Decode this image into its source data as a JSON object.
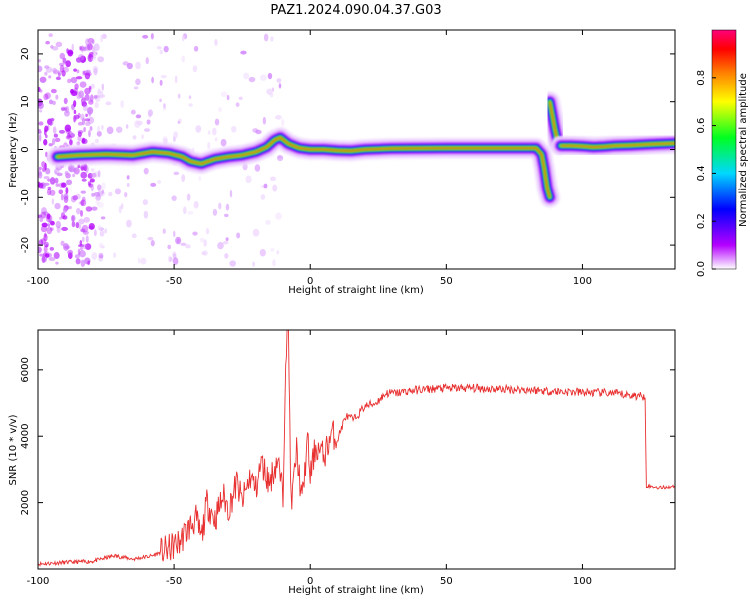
{
  "title": "PAZ1.2024.090.04.37.G03",
  "colors": {
    "snr_line": "#e83030",
    "frame": "#000000",
    "cmap": [
      "#ffffff",
      "#b400ff",
      "#0000ff",
      "#00d8ff",
      "#00ff20",
      "#ffff00",
      "#ff8000",
      "#ff0000",
      "#ff007a"
    ]
  },
  "chart_data": [
    {
      "type": "heatmap",
      "name": "spectrogram",
      "xlabel": "Height of straight line (km)",
      "ylabel": "Frequency (Hz)",
      "xlim": [
        -100,
        134
      ],
      "ylim": [
        -25,
        25
      ],
      "x_ticks": [
        -100,
        -50,
        0,
        50,
        100
      ],
      "y_ticks": [
        -20,
        -10,
        0,
        10,
        20
      ],
      "colorbar": {
        "label": "Normalized spectral amplitude",
        "range": [
          0,
          1
        ],
        "ticks": [
          0.0,
          0.2,
          0.4,
          0.6,
          0.8
        ]
      },
      "ridge": [
        [
          -93,
          -1.5
        ],
        [
          -85,
          -1.2
        ],
        [
          -75,
          -1.0
        ],
        [
          -65,
          -1.2
        ],
        [
          -58,
          -0.5
        ],
        [
          -52,
          -0.8
        ],
        [
          -47,
          -1.5
        ],
        [
          -44,
          -2.5
        ],
        [
          -40,
          -3.0
        ],
        [
          -35,
          -2.0
        ],
        [
          -30,
          -1.5
        ],
        [
          -25,
          -1.2
        ],
        [
          -20,
          -0.5
        ],
        [
          -16,
          0.5
        ],
        [
          -13,
          2.0
        ],
        [
          -11,
          2.5
        ],
        [
          -8,
          1.2
        ],
        [
          -4,
          0.3
        ],
        [
          0,
          0.0
        ],
        [
          5,
          0.0
        ],
        [
          10,
          -0.2
        ],
        [
          15,
          -0.3
        ],
        [
          20,
          0.0
        ],
        [
          30,
          0.2
        ],
        [
          50,
          0.3
        ],
        [
          70,
          0.3
        ],
        [
          83,
          0.3
        ],
        [
          85,
          -1.0
        ],
        [
          86,
          -4.0
        ],
        [
          87,
          -8.0
        ],
        [
          88,
          -10.0
        ]
      ],
      "ridge_spike": [
        [
          88,
          10.0
        ],
        [
          90,
          4.0
        ],
        [
          91,
          1.5
        ],
        [
          92,
          1.0
        ]
      ],
      "ridge_right": [
        [
          92,
          0.8
        ],
        [
          96,
          0.8
        ],
        [
          100,
          0.7
        ],
        [
          104,
          0.5
        ],
        [
          108,
          0.6
        ],
        [
          112,
          0.8
        ],
        [
          118,
          0.9
        ],
        [
          125,
          1.1
        ],
        [
          134,
          1.3
        ]
      ]
    },
    {
      "type": "line",
      "name": "snr",
      "xlabel": "Height of straight line (km)",
      "ylabel": "SNR (10 * v/v)",
      "xlim": [
        -100,
        134
      ],
      "ylim": [
        0,
        7200
      ],
      "x_ticks": [
        -100,
        -50,
        0,
        50,
        100
      ],
      "y_ticks": [
        2000,
        4000,
        6000
      ],
      "series": [
        {
          "points": [
            [
              -100,
              150
            ],
            [
              -90,
              200
            ],
            [
              -80,
              230
            ],
            [
              -72,
              400
            ],
            [
              -65,
              300
            ],
            [
              -58,
              400
            ],
            [
              -52,
              600
            ],
            [
              -48,
              800
            ],
            [
              -45,
              1200
            ],
            [
              -42,
              1500
            ],
            [
              -40,
              900
            ],
            [
              -38,
              2000
            ],
            [
              -35,
              1500
            ],
            [
              -32,
              2200
            ],
            [
              -30,
              1800
            ],
            [
              -27,
              2600
            ],
            [
              -25,
              2000
            ],
            [
              -22,
              2800
            ],
            [
              -20,
              2400
            ],
            [
              -18,
              3200
            ],
            [
              -15,
              2600
            ],
            [
              -12,
              3300
            ],
            [
              -10,
              2200
            ],
            [
              -9,
              6600
            ],
            [
              -8,
              7200
            ],
            [
              -7,
              1800
            ],
            [
              -5,
              3600
            ],
            [
              -3,
              2000
            ],
            [
              -1,
              3900
            ],
            [
              0,
              2800
            ],
            [
              2,
              3700
            ],
            [
              5,
              3400
            ],
            [
              8,
              4100
            ],
            [
              10,
              3900
            ],
            [
              13,
              4600
            ],
            [
              16,
              4500
            ],
            [
              20,
              4900
            ],
            [
              24,
              5000
            ],
            [
              28,
              5300
            ],
            [
              32,
              5300
            ],
            [
              35,
              5350
            ],
            [
              40,
              5400
            ],
            [
              50,
              5450
            ],
            [
              60,
              5450
            ],
            [
              70,
              5420
            ],
            [
              80,
              5400
            ],
            [
              90,
              5350
            ],
            [
              100,
              5320
            ],
            [
              110,
              5300
            ],
            [
              115,
              5250
            ],
            [
              123,
              5200
            ],
            [
              123.5,
              2500
            ],
            [
              128,
              2450
            ],
            [
              134,
              2480
            ]
          ]
        }
      ]
    }
  ]
}
